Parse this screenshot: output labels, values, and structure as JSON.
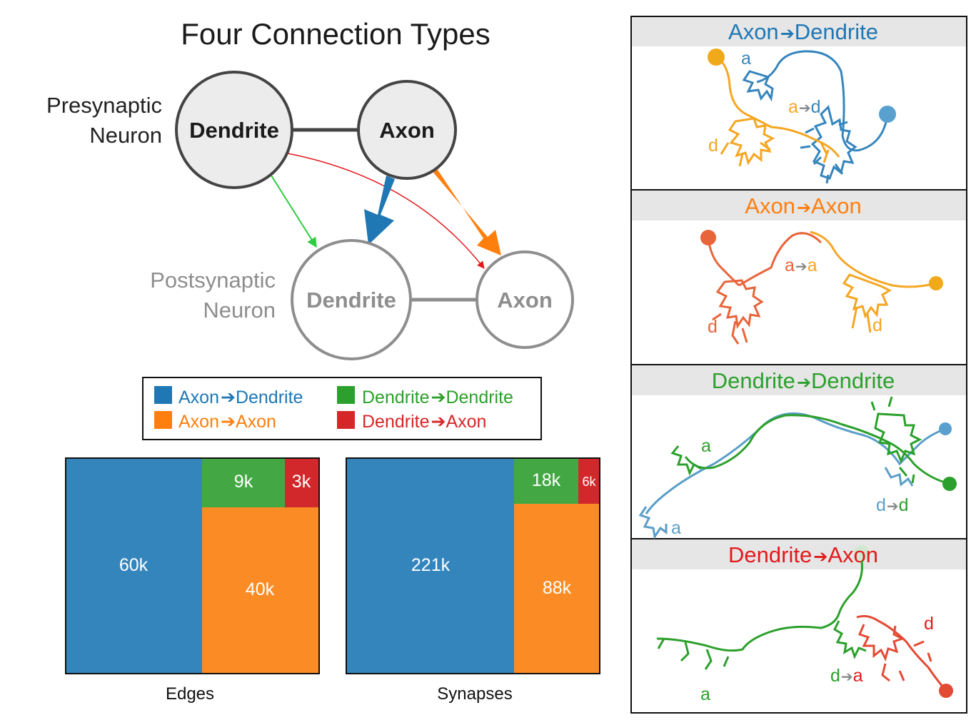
{
  "diagram": {
    "title": "Four Connection Types",
    "presynaptic_label": [
      "Presynaptic",
      "Neuron"
    ],
    "postsynaptic_label": [
      "Postsynaptic",
      "Neuron"
    ],
    "nodes": {
      "pre_dendrite": "Dendrite",
      "pre_axon": "Axon",
      "post_dendrite": "Dendrite",
      "post_axon": "Axon"
    }
  },
  "legend": {
    "items": [
      {
        "src": "Axon",
        "dst": "Dendrite",
        "color": "#1f77b4"
      },
      {
        "src": "Dendrite",
        "dst": "Dendrite",
        "color": "#2ca02c"
      },
      {
        "src": "Axon",
        "dst": "Axon",
        "color": "#ff7f0e"
      },
      {
        "src": "Dendrite",
        "dst": "Axon",
        "color": "#d62728"
      }
    ]
  },
  "colors": {
    "axon_dendrite": "#3585bd",
    "axon_axon": "#fb8c25",
    "dendrite_dendrite": "#43a844",
    "dendrite_axon": "#d3282b",
    "node_fill": "#ececec",
    "pre_stroke": "#444444",
    "post_stroke": "#8e8e8e"
  },
  "treemaps": [
    {
      "label": "Edges",
      "cells": [
        {
          "type": "axon_dendrite",
          "value": "60k"
        },
        {
          "type": "dendrite_dendrite",
          "value": "9k"
        },
        {
          "type": "dendrite_axon",
          "value": "3k"
        },
        {
          "type": "axon_axon",
          "value": "40k"
        }
      ]
    },
    {
      "label": "Synapses",
      "cells": [
        {
          "type": "axon_dendrite",
          "value": "221k"
        },
        {
          "type": "dendrite_dendrite",
          "value": "18k"
        },
        {
          "type": "dendrite_axon",
          "value": "6k"
        },
        {
          "type": "axon_axon",
          "value": "88k"
        }
      ]
    }
  ],
  "panels": [
    {
      "src": "Axon",
      "dst": "Dendrite",
      "color": "#1f77b4",
      "labels": {
        "a": "a",
        "d": "d",
        "conn_src": "a",
        "conn_dst": "d"
      }
    },
    {
      "src": "Axon",
      "dst": "Axon",
      "color": "#ff7f0e",
      "labels": {
        "d1": "d",
        "d2": "d",
        "conn_src": "a",
        "conn_dst": "a"
      }
    },
    {
      "src": "Dendrite",
      "dst": "Dendrite",
      "color": "#2ca02c",
      "labels": {
        "a1": "a",
        "a2": "a",
        "conn_src": "d",
        "conn_dst": "d"
      }
    },
    {
      "src": "Dendrite",
      "dst": "Axon",
      "color": "#e31a1c",
      "labels": {
        "a": "a",
        "d": "d",
        "conn_src": "d",
        "conn_dst": "a"
      }
    }
  ]
}
